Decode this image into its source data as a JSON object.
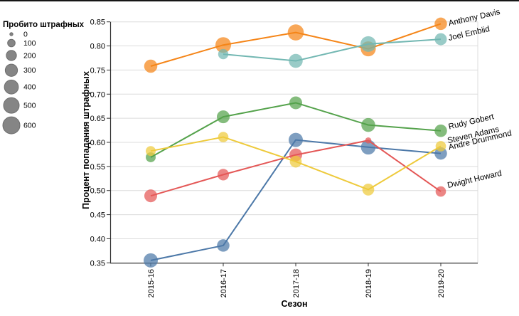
{
  "chart_data": {
    "type": "line",
    "title": "",
    "xlabel": "Сезон",
    "ylabel": "Процент попадания штрафных",
    "x_categories": [
      "2015-16",
      "2016-17",
      "2017-18",
      "2018-19",
      "2019-20"
    ],
    "ylim": [
      0.35,
      0.85
    ],
    "ytick_labels": [
      "0.35",
      "0.40",
      "0.45",
      "0.50",
      "0.55",
      "0.60",
      "0.65",
      "0.70",
      "0.75",
      "0.80",
      "0.85"
    ],
    "grid": "horizontal",
    "legend_position": "left",
    "size_legend": {
      "title": "Пробито штрафных",
      "values": [
        0,
        100,
        200,
        300,
        400,
        500,
        600
      ]
    },
    "series": [
      {
        "name": "Andre Drummond",
        "color": "#4c78a8",
        "values": [
          0.355,
          0.386,
          0.605,
          0.59,
          0.577
        ],
        "attempts": [
          410,
          310,
          410,
          440,
          310
        ],
        "label_dy": -5
      },
      {
        "name": "Anthony Davis",
        "color": "#f58518",
        "values": [
          0.758,
          0.802,
          0.828,
          0.794,
          0.846
        ],
        "attempts": [
          350,
          500,
          530,
          460,
          310
        ],
        "label_dy": 3
      },
      {
        "name": "Dwight Howard",
        "color": "#e45756",
        "values": [
          0.489,
          0.533,
          0.574,
          0.604,
          0.498
        ],
        "attempts": [
          330,
          260,
          330,
          60,
          210
        ],
        "label_dy": -5
      },
      {
        "name": "Joel Embiid",
        "color": "#72b7b2",
        "values": [
          null,
          0.783,
          0.769,
          0.804,
          0.814
        ],
        "attempts": [
          null,
          200,
          390,
          500,
          290
        ],
        "label_dy": 2
      },
      {
        "name": "Rudy Gobert",
        "color": "#54a24b",
        "values": [
          0.569,
          0.653,
          0.682,
          0.636,
          0.624
        ],
        "attempts": [
          190,
          330,
          330,
          390,
          310
        ],
        "label_dy": -2
      },
      {
        "name": "Steven Adams",
        "color": "#eeca3b",
        "values": [
          0.582,
          0.611,
          0.56,
          0.502,
          0.592
        ],
        "attempts": [
          190,
          210,
          280,
          280,
          210
        ],
        "label_dy": -4
      }
    ],
    "colors": {
      "grid": "#dcdcdc",
      "axis": "#333333",
      "legend_bubble_fill": "#858585",
      "legend_bubble_stroke": "#6d6d6d",
      "label_text": "#000000"
    }
  }
}
